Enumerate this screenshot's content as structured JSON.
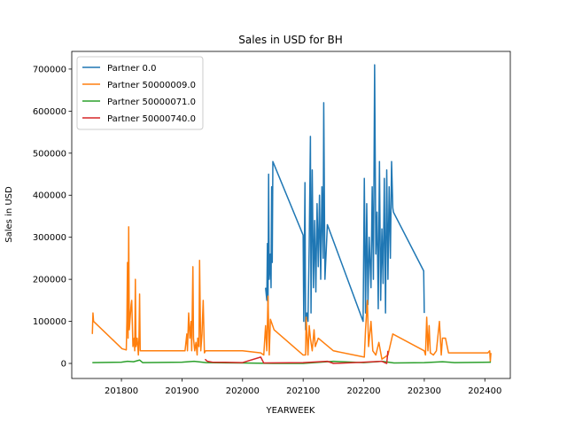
{
  "chart_data": {
    "type": "line",
    "title": "Sales in USD for BH",
    "xlabel": "YEARWEEK",
    "ylabel": "Sales in USD",
    "xlim": [
      201718,
      202442
    ],
    "ylim": [
      -35800,
      742000
    ],
    "xticks": [
      201800,
      201900,
      202000,
      202100,
      202200,
      202300,
      202400
    ],
    "yticks": [
      0,
      100000,
      200000,
      300000,
      400000,
      500000,
      600000,
      700000
    ],
    "legend": "upper-left",
    "series": [
      {
        "name": "Partner 0.0",
        "color": "#1f77b4",
        "x": [
          202038,
          202040,
          202041,
          202042,
          202043,
          202044,
          202046,
          202047,
          202048,
          202049,
          202050,
          202100,
          202101,
          202103,
          202104,
          202106,
          202108,
          202110,
          202112,
          202113,
          202115,
          202117,
          202119,
          202121,
          202123,
          202125,
          202127,
          202129,
          202131,
          202133,
          202134,
          202136,
          202140,
          202199,
          202201,
          202203,
          202205,
          202207,
          202209,
          202212,
          202214,
          202216,
          202218,
          202220,
          202222,
          202224,
          202226,
          202228,
          202230,
          202232,
          202234,
          202236,
          202238,
          202240,
          202242,
          202244,
          202246,
          202248,
          202249,
          202299,
          202300
        ],
        "values": [
          180000,
          150000,
          285000,
          140000,
          450000,
          200000,
          260000,
          180000,
          420000,
          240000,
          480000,
          305000,
          100000,
          430000,
          80000,
          120000,
          100000,
          280000,
          540000,
          120000,
          460000,
          180000,
          340000,
          170000,
          380000,
          230000,
          400000,
          200000,
          420000,
          250000,
          620000,
          200000,
          330000,
          100000,
          440000,
          120000,
          380000,
          140000,
          300000,
          180000,
          420000,
          200000,
          710000,
          260000,
          360000,
          130000,
          480000,
          150000,
          320000,
          190000,
          440000,
          120000,
          460000,
          200000,
          420000,
          250000,
          480000,
          370000,
          360000,
          220000,
          120000
        ]
      },
      {
        "name": "Partner 50000009.0",
        "color": "#ff7f0e",
        "x": [
          201752,
          201753,
          201754,
          201801,
          201808,
          201809,
          201810,
          201811,
          201812,
          201813,
          201816,
          201817,
          201819,
          201821,
          201822,
          201823,
          201824,
          201826,
          201828,
          201829,
          201830,
          201831,
          201835,
          201905,
          201908,
          201909,
          201911,
          201913,
          201915,
          201916,
          201918,
          201919,
          201921,
          201923,
          201925,
          201926,
          201928,
          201929,
          201931,
          201933,
          201935,
          201937,
          201939,
          201945,
          202000,
          202030,
          202035,
          202038,
          202040,
          202042,
          202044,
          202046,
          202052,
          202100,
          202104,
          202105,
          202108,
          202110,
          202112,
          202115,
          202118,
          202120,
          202125,
          202150,
          202201,
          202203,
          202206,
          202208,
          202212,
          202215,
          202220,
          202225,
          202230,
          202240,
          202248,
          202300,
          202302,
          202304,
          202306,
          202308,
          202310,
          202315,
          202320,
          202325,
          202328,
          202330,
          202335,
          202340,
          202400,
          202405,
          202408,
          202409,
          202410
        ],
        "values": [
          70000,
          120000,
          100000,
          35000,
          32000,
          100000,
          240000,
          60000,
          325000,
          80000,
          140000,
          150000,
          40000,
          60000,
          30000,
          200000,
          40000,
          60000,
          20000,
          60000,
          165000,
          30000,
          30000,
          30000,
          70000,
          30000,
          120000,
          60000,
          100000,
          30000,
          230000,
          60000,
          30000,
          50000,
          20000,
          60000,
          40000,
          245000,
          30000,
          70000,
          150000,
          25000,
          30000,
          30000,
          30000,
          25000,
          20000,
          90000,
          30000,
          160000,
          20000,
          105000,
          80000,
          20000,
          20000,
          110000,
          20000,
          90000,
          60000,
          30000,
          80000,
          40000,
          60000,
          30000,
          15000,
          80000,
          150000,
          40000,
          100000,
          30000,
          20000,
          50000,
          10000,
          20000,
          70000,
          30000,
          20000,
          110000,
          30000,
          90000,
          25000,
          20000,
          30000,
          100000,
          20000,
          60000,
          60000,
          25000,
          25000,
          25000,
          30000,
          5000,
          25000
        ]
      },
      {
        "name": "Partner 50000071.0",
        "color": "#2ca02c",
        "x": [
          201752,
          201800,
          201810,
          201820,
          201830,
          201835,
          201900,
          201920,
          201940,
          202000,
          202050,
          202100,
          202150,
          202200,
          202230,
          202250,
          202300,
          202330,
          202350,
          202410
        ],
        "values": [
          2000,
          3000,
          5000,
          4000,
          8000,
          2000,
          3000,
          5000,
          2000,
          1000,
          0,
          0,
          5000,
          2000,
          5000,
          1000,
          2000,
          4000,
          2000,
          3000
        ]
      },
      {
        "name": "Partner 50000740.0",
        "color": "#d62728",
        "x": [
          201938,
          201942,
          201950,
          202000,
          202030,
          202035,
          202100,
          202140,
          202150,
          202200,
          202230,
          202238,
          202240
        ],
        "values": [
          10000,
          5000,
          3000,
          2000,
          15000,
          1000,
          2000,
          5000,
          0,
          3000,
          5000,
          0,
          30000
        ]
      }
    ]
  }
}
